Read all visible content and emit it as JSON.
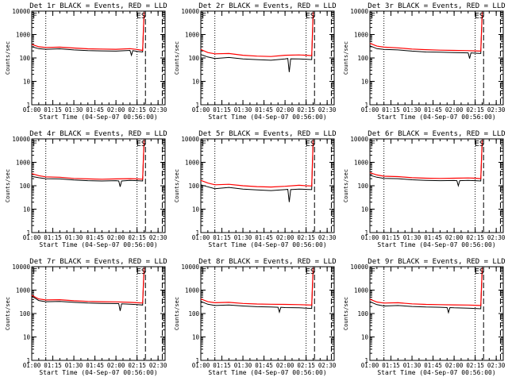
{
  "chart_data": [
    {
      "type": "line",
      "title": "Det 1r BLACK = Events, RED = LLD",
      "ylabel": "Counts/sec",
      "xlabel": "Start Time (04-Sep-07 00:56:00)",
      "y_scale": "log",
      "ylim": [
        1,
        10000
      ],
      "y_ticks": [
        "1",
        "10",
        "100",
        "1000",
        "10000"
      ],
      "x_range": [
        "01:00",
        "02:35"
      ],
      "x_ticks": [
        "01:00",
        "01:15",
        "01:30",
        "01:45",
        "02:00",
        "02:15",
        "02:30"
      ],
      "dotted_lines": [
        "01:10",
        "02:15"
      ],
      "dashed_lines": [
        "02:21",
        "02:33"
      ],
      "markers": [
        "F",
        "ES"
      ],
      "series": [
        {
          "name": "Events",
          "color": "#000000",
          "x_min": [
            0,
            5,
            10,
            20,
            30,
            40,
            50,
            60,
            70,
            71,
            72,
            75,
            79,
            80
          ],
          "values": [
            300,
            250,
            235,
            245,
            220,
            205,
            200,
            195,
            210,
            130,
            205,
            190,
            180,
            8000
          ]
        },
        {
          "name": "LLD",
          "color": "#ff0000",
          "x_min": [
            0,
            5,
            10,
            20,
            30,
            40,
            50,
            60,
            70,
            75,
            79,
            80
          ],
          "values": [
            380,
            300,
            280,
            290,
            265,
            245,
            240,
            235,
            250,
            230,
            210,
            9000
          ]
        }
      ]
    },
    {
      "type": "line",
      "title": "Det 2r BLACK = Events, RED = LLD",
      "ylabel": "Counts/sec",
      "xlabel": "Start Time (04-Sep-07 00:56:00)",
      "y_scale": "log",
      "ylim": [
        1,
        10000
      ],
      "y_ticks": [
        "1",
        "10",
        "100",
        "1000",
        "10000"
      ],
      "x_range": [
        "01:00",
        "02:35"
      ],
      "x_ticks": [
        "01:00",
        "01:15",
        "01:30",
        "01:45",
        "02:00",
        "02:15",
        "02:30"
      ],
      "dotted_lines": [
        "01:10",
        "02:15"
      ],
      "dashed_lines": [
        "02:21",
        "02:33"
      ],
      "markers": [
        "F",
        "ES"
      ],
      "series": [
        {
          "name": "Events",
          "color": "#000000",
          "x_min": [
            0,
            5,
            10,
            20,
            30,
            40,
            50,
            60,
            62,
            63,
            64,
            70,
            75,
            79,
            80
          ],
          "values": [
            140,
            110,
            95,
            105,
            90,
            85,
            80,
            90,
            95,
            25,
            92,
            90,
            88,
            85,
            8000
          ]
        },
        {
          "name": "LLD",
          "color": "#ff0000",
          "x_min": [
            0,
            5,
            10,
            20,
            30,
            40,
            50,
            60,
            70,
            75,
            79,
            80
          ],
          "values": [
            230,
            170,
            150,
            155,
            130,
            120,
            115,
            130,
            135,
            130,
            125,
            9000
          ]
        }
      ]
    },
    {
      "type": "line",
      "title": "Det 3r BLACK = Events, RED = LLD",
      "ylabel": "Counts/sec",
      "xlabel": "Start Time (04-Sep-07 00:56:00)",
      "y_scale": "log",
      "ylim": [
        1,
        10000
      ],
      "y_ticks": [
        "1",
        "10",
        "100",
        "1000",
        "10000"
      ],
      "x_range": [
        "01:00",
        "02:35"
      ],
      "x_ticks": [
        "01:00",
        "01:15",
        "01:30",
        "01:45",
        "02:00",
        "02:15",
        "02:30"
      ],
      "dotted_lines": [
        "01:10",
        "02:15"
      ],
      "dashed_lines": [
        "02:21",
        "02:33"
      ],
      "markers": [
        "F",
        "ES"
      ],
      "series": [
        {
          "name": "Events",
          "color": "#000000",
          "x_min": [
            0,
            5,
            10,
            20,
            30,
            40,
            50,
            60,
            70,
            71,
            72,
            75,
            79,
            80
          ],
          "values": [
            330,
            250,
            230,
            220,
            195,
            180,
            175,
            170,
            165,
            95,
            165,
            160,
            155,
            8000
          ]
        },
        {
          "name": "LLD",
          "color": "#ff0000",
          "x_min": [
            0,
            5,
            10,
            20,
            30,
            40,
            50,
            60,
            70,
            75,
            79,
            80
          ],
          "values": [
            420,
            320,
            290,
            270,
            240,
            225,
            215,
            210,
            205,
            200,
            195,
            9000
          ]
        }
      ]
    },
    {
      "type": "line",
      "title": "Det 4r BLACK = Events, RED = LLD",
      "ylabel": "Counts/sec",
      "xlabel": "Start Time (04-Sep-07 00:56:00)",
      "y_scale": "log",
      "ylim": [
        1,
        10000
      ],
      "y_ticks": [
        "1",
        "10",
        "100",
        "1000",
        "10000"
      ],
      "x_range": [
        "01:00",
        "02:35"
      ],
      "x_ticks": [
        "01:00",
        "01:15",
        "01:30",
        "01:45",
        "02:00",
        "02:15",
        "02:30"
      ],
      "dotted_lines": [
        "01:10",
        "02:15"
      ],
      "dashed_lines": [
        "02:21",
        "02:33"
      ],
      "markers": [
        "F",
        "ES"
      ],
      "series": [
        {
          "name": "Events",
          "color": "#000000",
          "x_min": [
            0,
            5,
            10,
            20,
            30,
            40,
            50,
            60,
            62,
            63,
            64,
            70,
            75,
            79,
            80
          ],
          "values": [
            250,
            220,
            200,
            195,
            175,
            165,
            160,
            165,
            160,
            90,
            160,
            170,
            165,
            160,
            8000
          ]
        },
        {
          "name": "LLD",
          "color": "#ff0000",
          "x_min": [
            0,
            5,
            10,
            20,
            30,
            40,
            50,
            60,
            70,
            75,
            79,
            80
          ],
          "values": [
            330,
            270,
            240,
            230,
            205,
            195,
            190,
            195,
            200,
            195,
            190,
            9000
          ]
        }
      ]
    },
    {
      "type": "line",
      "title": "Det 5r BLACK = Events, RED = LLD",
      "ylabel": "Counts/sec",
      "xlabel": "Start Time (04-Sep-07 00:56:00)",
      "y_scale": "log",
      "ylim": [
        1,
        10000
      ],
      "y_ticks": [
        "1",
        "10",
        "100",
        "1000",
        "10000"
      ],
      "x_range": [
        "01:00",
        "02:35"
      ],
      "x_ticks": [
        "01:00",
        "01:15",
        "01:30",
        "01:45",
        "02:00",
        "02:15",
        "02:30"
      ],
      "dotted_lines": [
        "01:10",
        "02:15"
      ],
      "dashed_lines": [
        "02:21",
        "02:33"
      ],
      "markers": [
        "F",
        "ES"
      ],
      "series": [
        {
          "name": "Events",
          "color": "#000000",
          "x_min": [
            0,
            5,
            10,
            20,
            30,
            40,
            50,
            60,
            62,
            63,
            64,
            70,
            75,
            79,
            80
          ],
          "values": [
            110,
            90,
            75,
            85,
            72,
            66,
            62,
            68,
            70,
            20,
            68,
            72,
            70,
            68,
            8000
          ]
        },
        {
          "name": "LLD",
          "color": "#ff0000",
          "x_min": [
            0,
            5,
            10,
            20,
            30,
            40,
            50,
            60,
            70,
            75,
            79,
            80
          ],
          "values": [
            170,
            130,
            110,
            115,
            100,
            92,
            88,
            95,
            105,
            100,
            98,
            9000
          ]
        }
      ]
    },
    {
      "type": "line",
      "title": "Det 6r BLACK = Events, RED = LLD",
      "ylabel": "Counts/sec",
      "xlabel": "Start Time (04-Sep-07 00:56:00)",
      "y_scale": "log",
      "ylim": [
        1,
        10000
      ],
      "y_ticks": [
        "1",
        "10",
        "100",
        "1000",
        "10000"
      ],
      "x_range": [
        "01:00",
        "02:35"
      ],
      "x_ticks": [
        "01:00",
        "01:15",
        "01:30",
        "01:45",
        "02:00",
        "02:15",
        "02:30"
      ],
      "dotted_lines": [
        "01:10",
        "02:15"
      ],
      "dashed_lines": [
        "02:21",
        "02:33"
      ],
      "markers": [
        "F",
        "ES"
      ],
      "series": [
        {
          "name": "Events",
          "color": "#000000",
          "x_min": [
            0,
            5,
            10,
            20,
            30,
            40,
            50,
            60,
            62,
            63,
            64,
            70,
            75,
            79,
            80
          ],
          "values": [
            280,
            230,
            205,
            200,
            180,
            170,
            165,
            168,
            165,
            100,
            165,
            170,
            165,
            160,
            8000
          ]
        },
        {
          "name": "LLD",
          "color": "#ff0000",
          "x_min": [
            0,
            5,
            10,
            20,
            30,
            40,
            50,
            60,
            70,
            75,
            79,
            80
          ],
          "values": [
            360,
            290,
            255,
            245,
            220,
            210,
            205,
            210,
            215,
            210,
            200,
            9000
          ]
        }
      ]
    },
    {
      "type": "line",
      "title": "Det 7r BLACK = Events, RED = LLD",
      "ylabel": "Counts/sec",
      "xlabel": "Start Time (04-Sep-07 00:56:00)",
      "y_scale": "log",
      "ylim": [
        1,
        10000
      ],
      "y_ticks": [
        "1",
        "10",
        "100",
        "1000",
        "10000"
      ],
      "x_range": [
        "01:00",
        "02:35"
      ],
      "x_ticks": [
        "01:00",
        "01:15",
        "01:30",
        "01:45",
        "02:00",
        "02:15",
        "02:30"
      ],
      "dotted_lines": [
        "01:10",
        "02:15"
      ],
      "dashed_lines": [
        "02:21",
        "02:33"
      ],
      "markers": [
        "F",
        "ES"
      ],
      "series": [
        {
          "name": "Events",
          "color": "#000000",
          "x_min": [
            0,
            5,
            10,
            20,
            30,
            40,
            50,
            62,
            63,
            64,
            70,
            75,
            79,
            80
          ],
          "values": [
            560,
            360,
            320,
            330,
            300,
            280,
            270,
            265,
            130,
            260,
            250,
            240,
            230,
            8000
          ]
        },
        {
          "name": "LLD",
          "color": "#ff0000",
          "x_min": [
            0,
            5,
            10,
            20,
            30,
            40,
            50,
            60,
            70,
            75,
            79,
            80
          ],
          "values": [
            600,
            420,
            380,
            390,
            350,
            330,
            320,
            315,
            300,
            290,
            280,
            9000
          ]
        }
      ]
    },
    {
      "type": "line",
      "title": "Det 8r BLACK = Events, RED = LLD",
      "ylabel": "Counts/sec",
      "xlabel": "Start Time (04-Sep-07 00:56:00)",
      "y_scale": "log",
      "ylim": [
        1,
        10000
      ],
      "y_ticks": [
        "1",
        "10",
        "100",
        "1000",
        "10000"
      ],
      "x_range": [
        "01:00",
        "02:35"
      ],
      "x_ticks": [
        "01:00",
        "01:15",
        "01:30",
        "01:45",
        "02:00",
        "02:15",
        "02:30"
      ],
      "dotted_lines": [
        "01:10",
        "02:15"
      ],
      "dashed_lines": [
        "02:21",
        "02:33"
      ],
      "markers": [
        "F",
        "ES"
      ],
      "series": [
        {
          "name": "Events",
          "color": "#000000",
          "x_min": [
            0,
            5,
            10,
            20,
            30,
            40,
            50,
            55,
            56,
            57,
            60,
            70,
            75,
            79,
            80
          ],
          "values": [
            330,
            250,
            220,
            230,
            210,
            195,
            190,
            185,
            115,
            185,
            180,
            175,
            170,
            165,
            8000
          ]
        },
        {
          "name": "LLD",
          "color": "#ff0000",
          "x_min": [
            0,
            5,
            10,
            20,
            30,
            40,
            50,
            60,
            70,
            75,
            79,
            80
          ],
          "values": [
            420,
            320,
            290,
            300,
            270,
            255,
            250,
            245,
            240,
            235,
            230,
            9000
          ]
        }
      ]
    },
    {
      "type": "line",
      "title": "Det 9r BLACK = Events, RED = LLD",
      "ylabel": "Counts/sec",
      "xlabel": "Start Time (04-Sep-07 00:56:00)",
      "y_scale": "log",
      "ylim": [
        1,
        10000
      ],
      "y_ticks": [
        "1",
        "10",
        "100",
        "1000",
        "10000"
      ],
      "x_range": [
        "01:00",
        "02:35"
      ],
      "x_ticks": [
        "01:00",
        "01:15",
        "01:30",
        "01:45",
        "02:00",
        "02:15",
        "02:30"
      ],
      "dotted_lines": [
        "01:10",
        "02:15"
      ],
      "dashed_lines": [
        "02:21",
        "02:33"
      ],
      "markers": [
        "F",
        "ES"
      ],
      "series": [
        {
          "name": "Events",
          "color": "#000000",
          "x_min": [
            0,
            5,
            10,
            20,
            30,
            40,
            50,
            55,
            56,
            57,
            60,
            70,
            75,
            79,
            80
          ],
          "values": [
            320,
            240,
            210,
            220,
            200,
            190,
            185,
            180,
            110,
            180,
            175,
            170,
            165,
            160,
            8000
          ]
        },
        {
          "name": "LLD",
          "color": "#ff0000",
          "x_min": [
            0,
            5,
            10,
            20,
            30,
            40,
            50,
            60,
            70,
            75,
            79,
            80
          ],
          "values": [
            410,
            310,
            280,
            290,
            260,
            245,
            240,
            235,
            230,
            225,
            220,
            9000
          ]
        }
      ]
    }
  ]
}
